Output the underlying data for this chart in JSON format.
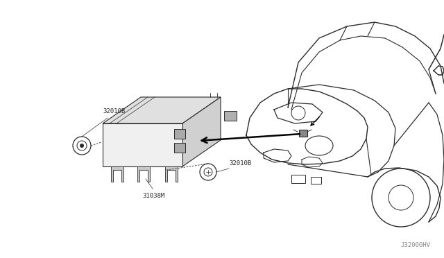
{
  "bg_color": "#ffffff",
  "line_color": "#2a2a2a",
  "text_color": "#2a2a2a",
  "watermark": "J32000HV",
  "label_32010B_1": "32010B",
  "label_31038M": "31038M",
  "label_32010B_2": "32010B"
}
